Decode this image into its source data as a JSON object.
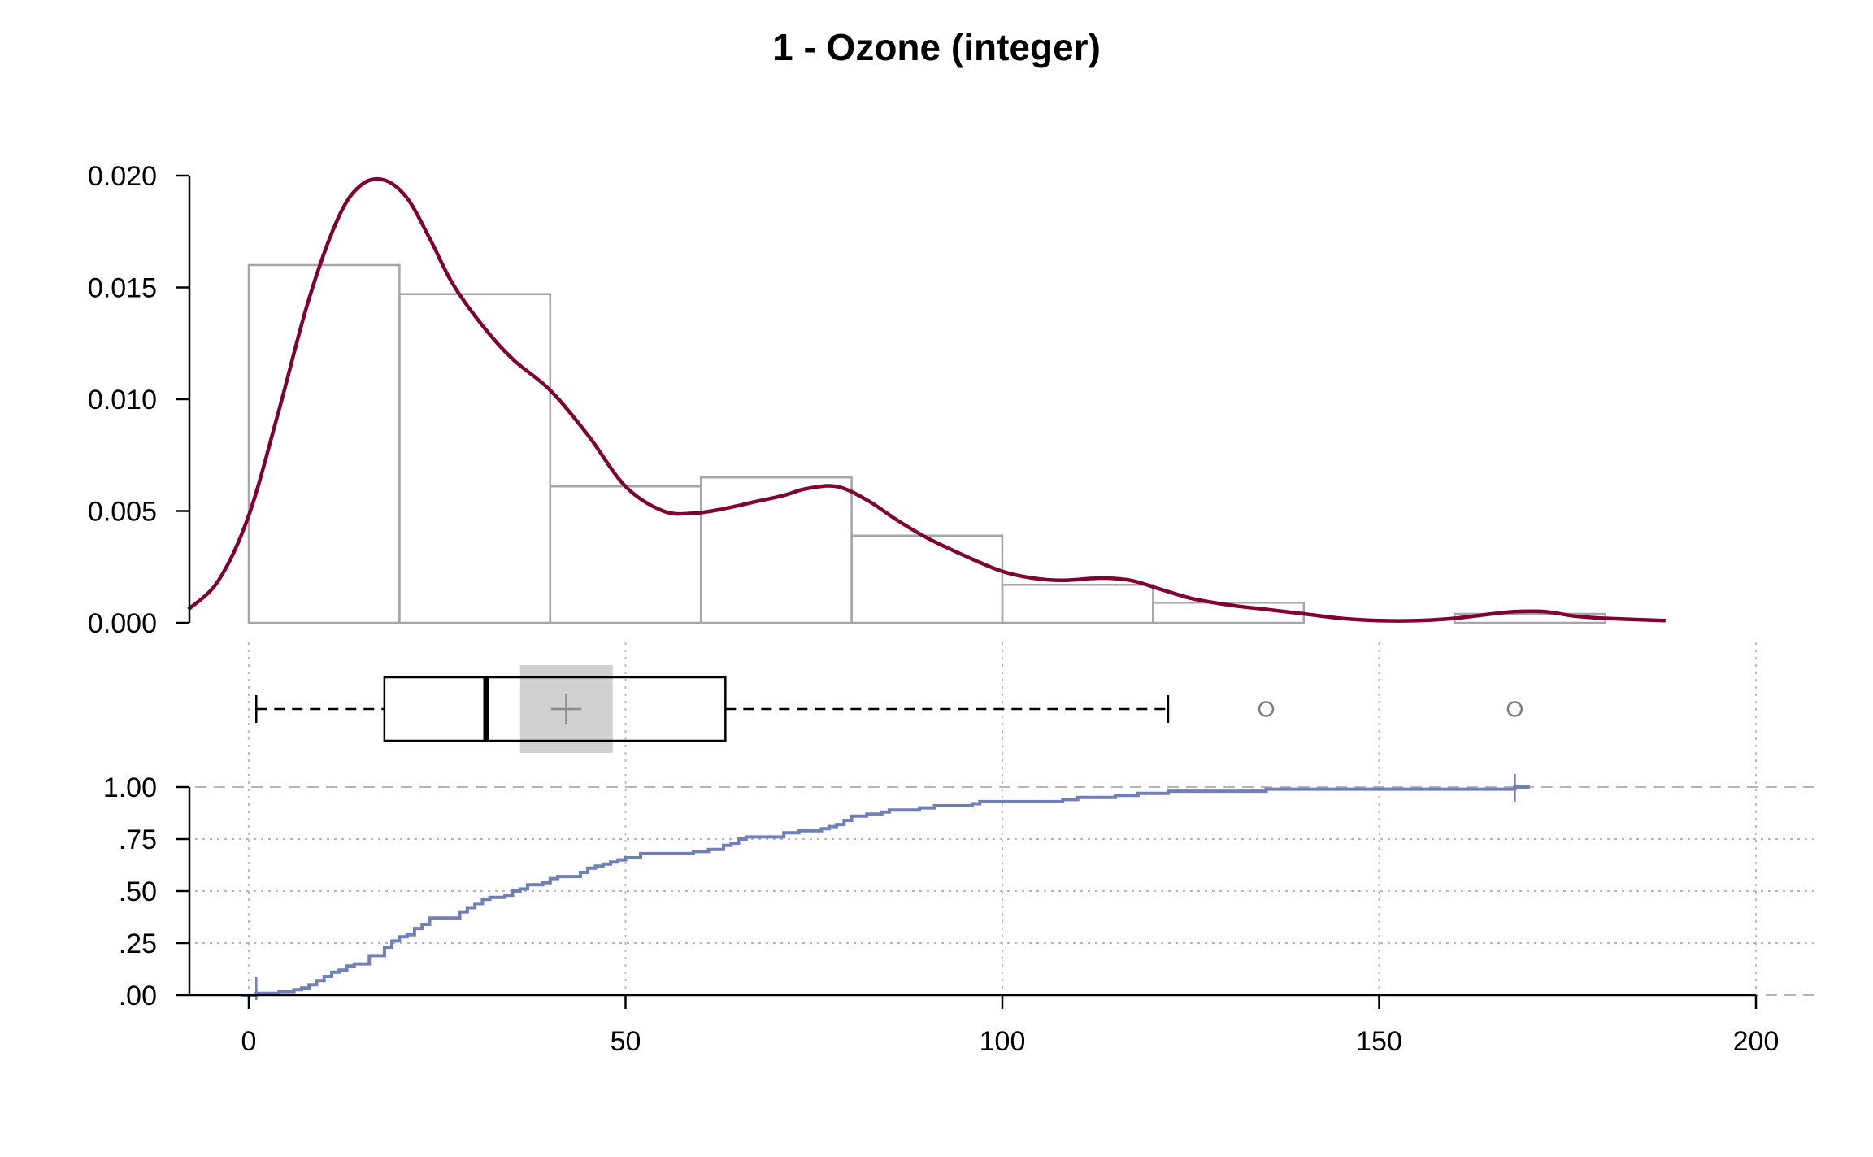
{
  "chart_data": {
    "type": "histogram+boxplot+ecdf",
    "title": "1 - Ozone (integer)",
    "xlabel": "",
    "ylabel": "",
    "x_ticks": [
      0,
      50,
      100,
      150,
      200
    ],
    "xlim": [
      -8,
      208
    ],
    "grid": true,
    "histogram": {
      "bin_edges": [
        0,
        20,
        40,
        60,
        80,
        100,
        120,
        140,
        160,
        180
      ],
      "density": [
        0.016,
        0.0147,
        0.0061,
        0.0065,
        0.0039,
        0.0017,
        0.0009,
        0.0,
        0.0004
      ],
      "ylim": [
        0,
        0.02
      ],
      "y_ticks": [
        "0.000",
        "0.005",
        "0.010",
        "0.015",
        "0.020"
      ],
      "bar_color": "#a6a6a6"
    },
    "density_curve": {
      "color": "#800033",
      "x": [
        -8,
        -4,
        0,
        4,
        8,
        12,
        15,
        18,
        21,
        24,
        27,
        31,
        35,
        40,
        45,
        50,
        55,
        59,
        63,
        67,
        71,
        74,
        78,
        82,
        86,
        90,
        95,
        100,
        104,
        108,
        113,
        117,
        121,
        125,
        130,
        135,
        140,
        145,
        150,
        155,
        160,
        165,
        168,
        172,
        176,
        180,
        188
      ],
      "y": [
        0.0006,
        0.0019,
        0.0048,
        0.0095,
        0.0145,
        0.0182,
        0.0196,
        0.0198,
        0.019,
        0.0172,
        0.0152,
        0.0133,
        0.0118,
        0.0104,
        0.0084,
        0.0061,
        0.005,
        0.0049,
        0.0051,
        0.0054,
        0.0057,
        0.006,
        0.0061,
        0.0055,
        0.0046,
        0.0038,
        0.003,
        0.0023,
        0.002,
        0.0019,
        0.002,
        0.0019,
        0.0015,
        0.0011,
        0.0008,
        0.0006,
        0.0004,
        0.0002,
        0.0001,
        0.0001,
        0.0002,
        0.0004,
        0.0005,
        0.0005,
        0.0003,
        0.0002,
        0.0001
      ]
    },
    "boxplot": {
      "whisker_low": 1,
      "q1": 18,
      "median": 31.5,
      "q3": 63.25,
      "whisker_high": 122,
      "mean": 42.13,
      "mean_ci": [
        36,
        48.3
      ],
      "outliers": [
        135,
        168
      ],
      "ci_color": "#d0d0d0"
    },
    "ecdf": {
      "color": "#6f7fb8",
      "ylim": [
        0,
        1
      ],
      "y_ticks": [
        ".00",
        ".25",
        ".50",
        ".75",
        "1.00"
      ],
      "x": [
        1,
        4,
        6,
        7,
        8,
        9,
        10,
        11,
        12,
        13,
        14,
        16,
        18,
        19,
        20,
        21,
        22,
        23,
        24,
        28,
        29,
        30,
        31,
        32,
        34,
        35,
        36,
        37,
        39,
        40,
        41,
        44,
        45,
        46,
        47,
        48,
        49,
        50,
        52,
        59,
        61,
        63,
        64,
        65,
        66,
        71,
        73,
        76,
        77,
        78,
        79,
        80,
        82,
        84,
        85,
        89,
        91,
        96,
        97,
        108,
        110,
        115,
        118,
        122,
        135,
        168
      ],
      "y": [
        0.009,
        0.017,
        0.026,
        0.034,
        0.05,
        0.069,
        0.09,
        0.11,
        0.12,
        0.14,
        0.15,
        0.19,
        0.23,
        0.26,
        0.28,
        0.29,
        0.32,
        0.34,
        0.37,
        0.4,
        0.42,
        0.44,
        0.46,
        0.47,
        0.48,
        0.5,
        0.51,
        0.53,
        0.54,
        0.56,
        0.57,
        0.59,
        0.61,
        0.62,
        0.63,
        0.64,
        0.65,
        0.66,
        0.68,
        0.69,
        0.7,
        0.72,
        0.73,
        0.75,
        0.76,
        0.78,
        0.79,
        0.8,
        0.81,
        0.82,
        0.84,
        0.86,
        0.87,
        0.88,
        0.89,
        0.9,
        0.91,
        0.92,
        0.93,
        0.94,
        0.95,
        0.96,
        0.97,
        0.98,
        0.99,
        1.0
      ]
    }
  }
}
